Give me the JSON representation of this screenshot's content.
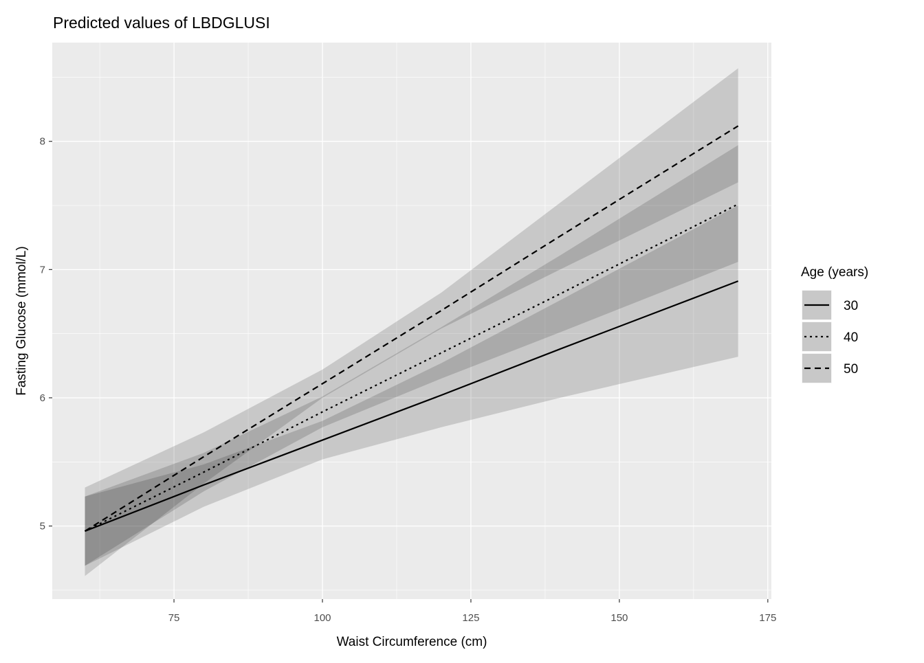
{
  "chart_data": {
    "type": "line",
    "title": "Predicted values of LBDGLUSI",
    "xlabel": "Waist Circumference (cm)",
    "ylabel": "Fasting Glucose (mmol/L)",
    "xlim": [
      54.5,
      175.6
    ],
    "ylim": [
      4.43,
      8.77
    ],
    "x_ticks": [
      75,
      100,
      125,
      150,
      175
    ],
    "y_ticks": [
      5,
      6,
      7,
      8
    ],
    "x_minor": [
      62.5,
      87.5,
      112.5,
      137.5,
      162.5
    ],
    "y_minor": [
      4.5,
      5.5,
      6.5,
      7.5,
      8.5
    ],
    "grid": true,
    "legend": {
      "title": "Age (years)",
      "position": "right"
    },
    "x": [
      60,
      80,
      100,
      120,
      140,
      170
    ],
    "series": [
      {
        "name": "30",
        "linetype": "solid",
        "values": [
          4.96,
          5.32,
          5.67,
          6.02,
          6.38,
          6.91
        ],
        "ci_low": [
          4.69,
          5.15,
          5.52,
          5.77,
          6.0,
          6.32
        ],
        "ci_high": [
          5.23,
          5.48,
          5.82,
          6.27,
          6.76,
          7.5
        ]
      },
      {
        "name": "40",
        "linetype": "dotted",
        "values": [
          4.96,
          5.42,
          5.89,
          6.35,
          6.81,
          7.51
        ],
        "ci_low": [
          4.69,
          5.27,
          5.77,
          6.15,
          6.51,
          7.06
        ],
        "ci_high": [
          5.23,
          5.57,
          6.01,
          6.55,
          7.11,
          7.97
        ]
      },
      {
        "name": "50",
        "linetype": "dashed",
        "values": [
          4.96,
          5.54,
          6.11,
          6.68,
          7.26,
          8.12
        ],
        "ci_low": [
          4.61,
          5.33,
          6.0,
          6.54,
          7.0,
          7.68
        ],
        "ci_high": [
          5.3,
          5.73,
          6.22,
          6.82,
          7.52,
          8.57
        ]
      }
    ],
    "colors": {
      "panel": "#EBEBEB",
      "grid": "#FFFFFF",
      "line": "#000000",
      "ribbon": "#000000",
      "tick_text": "#4D4D4D"
    }
  }
}
